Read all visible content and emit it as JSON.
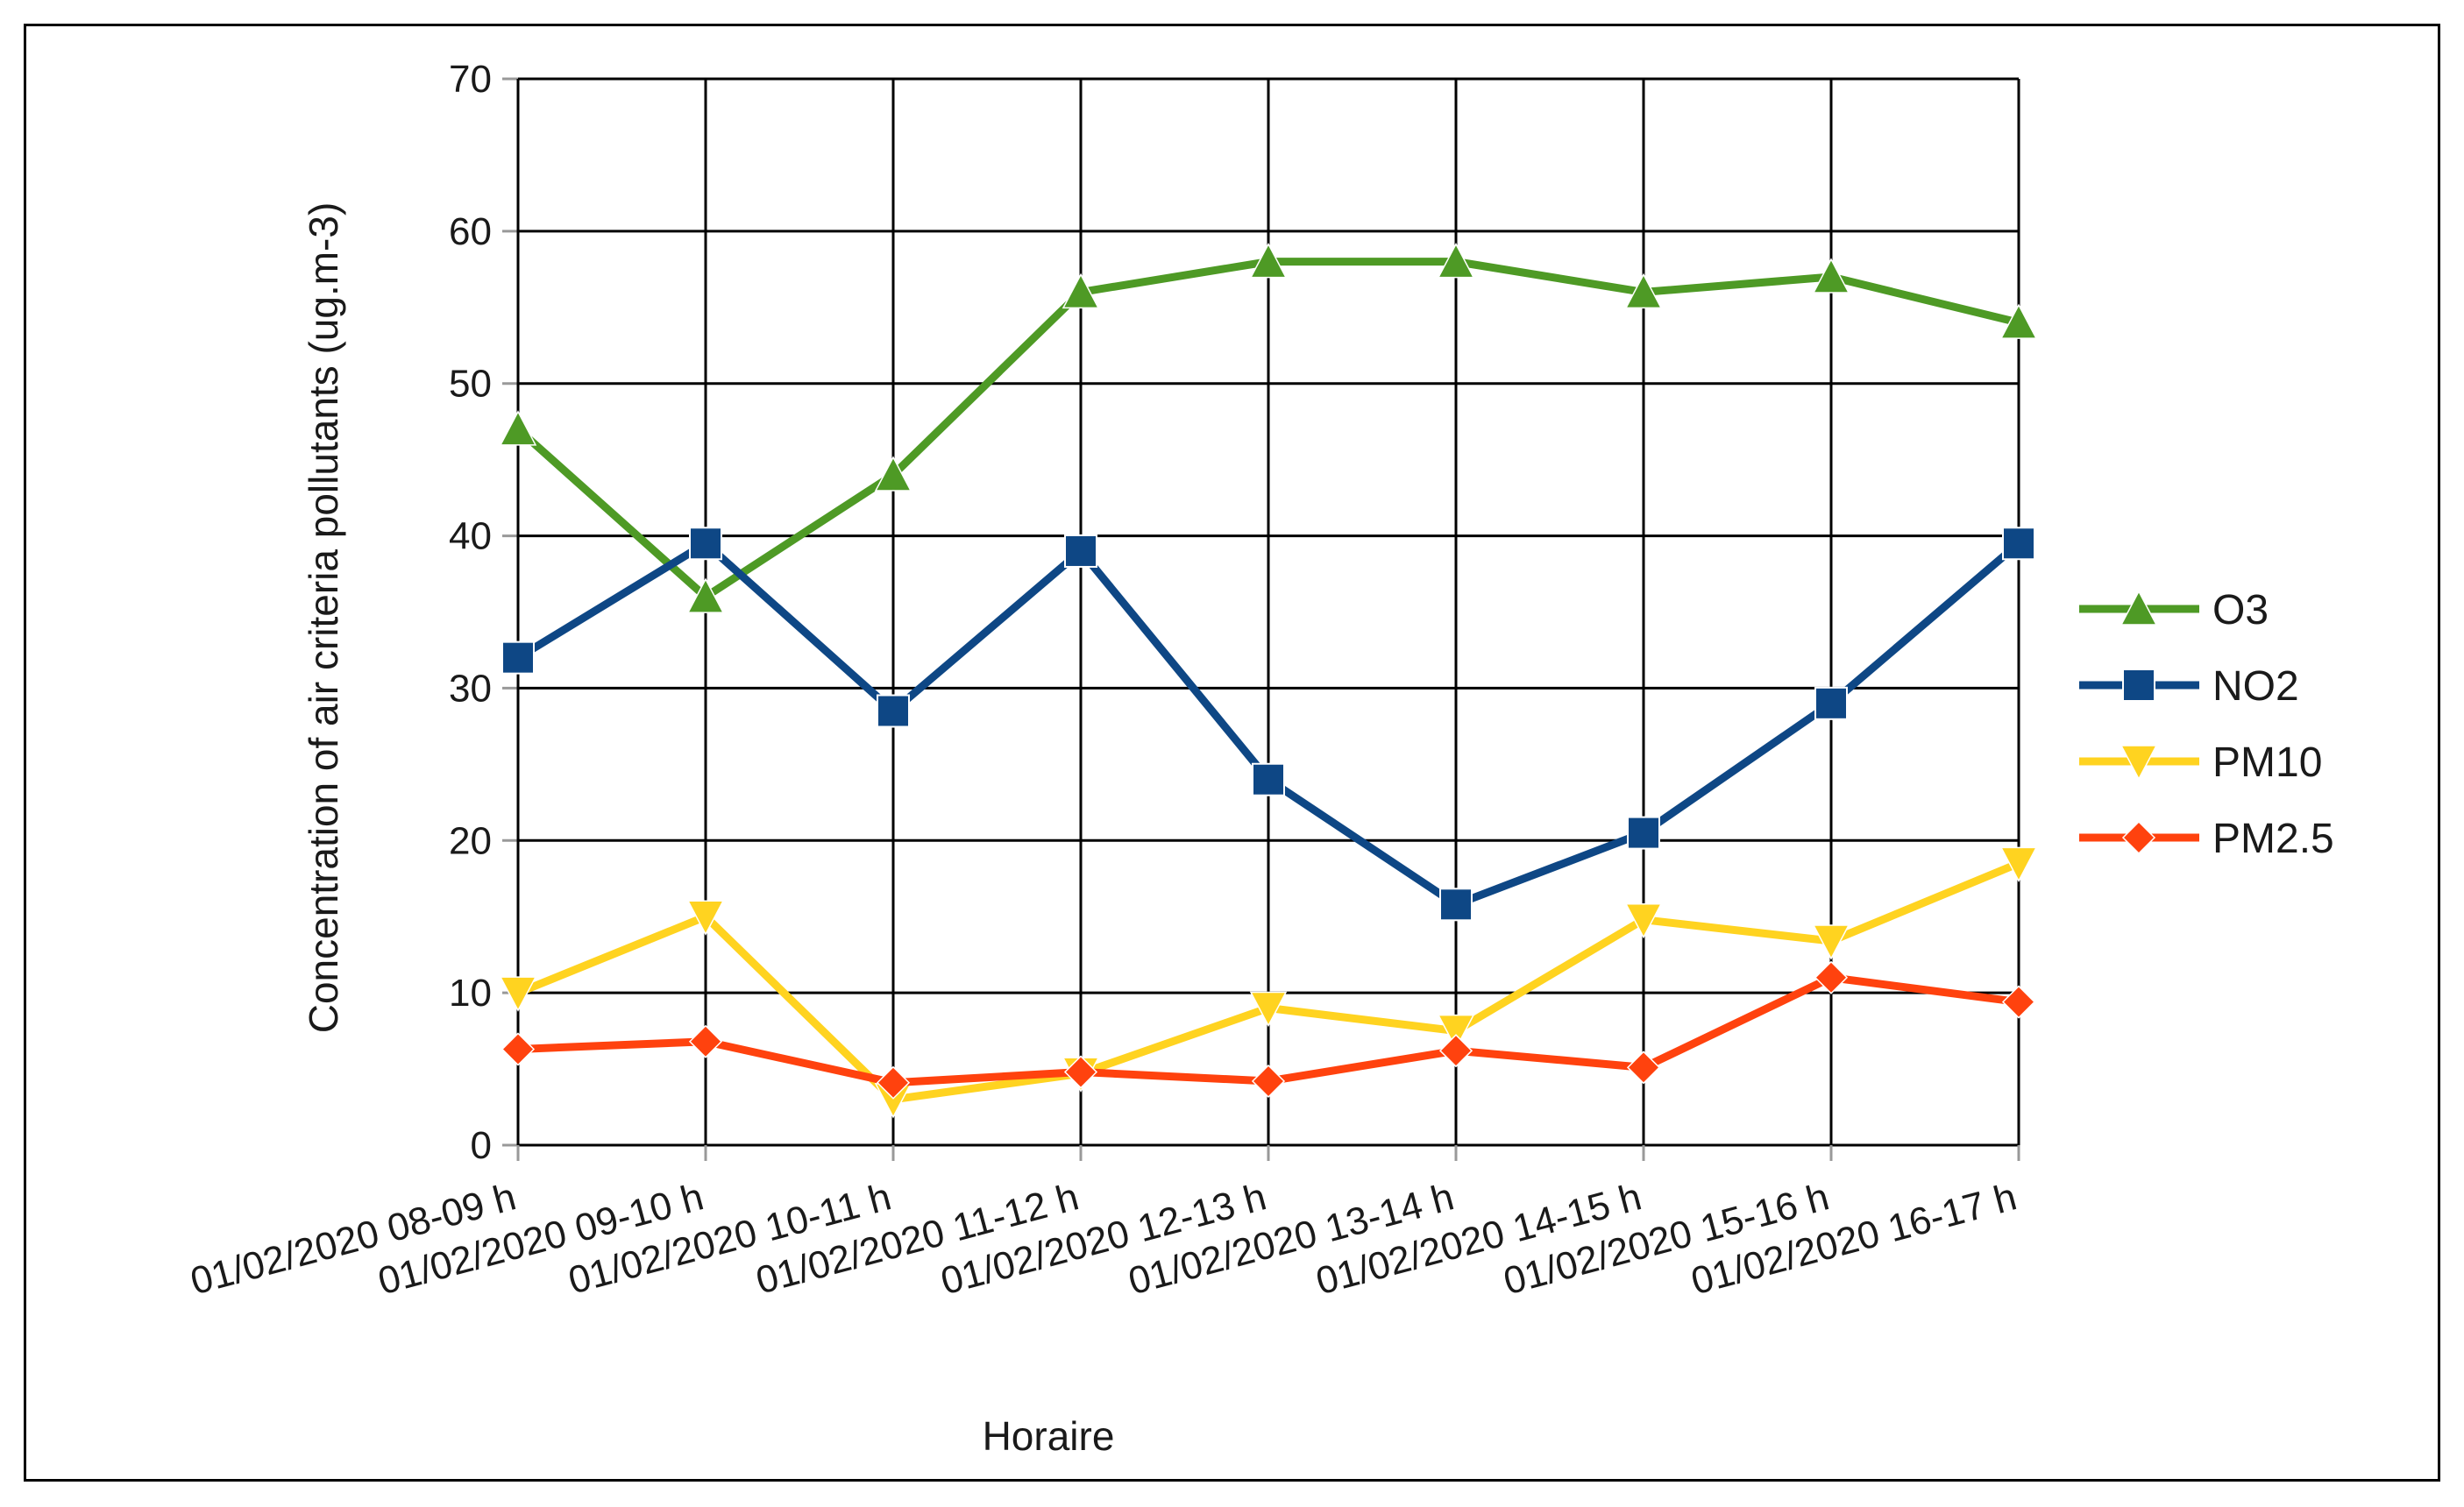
{
  "chart_data": {
    "type": "line",
    "xlabel": "Horaire",
    "ylabel": "Concentration of air criteria pollutants (ug.m-3)",
    "ylim": [
      0,
      70
    ],
    "yticks": [
      0,
      10,
      20,
      30,
      40,
      50,
      60,
      70
    ],
    "categories": [
      "01/02/2020 08-09 h",
      "01/02/2020 09-10 h",
      "01/02/2020 10-11 h",
      "01/02/2020 11-12 h",
      "01/02/2020 12-13 h",
      "01/02/2020 13-14 h",
      "01/02/2020 14-15 h",
      "01/02/2020 15-16 h",
      "01/02/2020 16-17 h"
    ],
    "grid": true,
    "legend_position": "right",
    "series": [
      {
        "name": "O3",
        "color": "#4e9a25",
        "marker": "triangle-up",
        "values": [
          47,
          36,
          44,
          56,
          58,
          58,
          56,
          57,
          54
        ]
      },
      {
        "name": "NO2",
        "color": "#0e4785",
        "marker": "square",
        "values": [
          32,
          39.5,
          28.5,
          39,
          24,
          15.8,
          20.5,
          29,
          39.5
        ]
      },
      {
        "name": "PM10",
        "color": "#ffd320",
        "marker": "triangle-down",
        "values": [
          10,
          15,
          3,
          4.7,
          9,
          7.5,
          14.8,
          13.4,
          18.5
        ]
      },
      {
        "name": "PM2.5",
        "color": "#ff420e",
        "marker": "diamond",
        "values": [
          6.3,
          6.8,
          4.1,
          4.8,
          4.2,
          6.2,
          5.1,
          11,
          9.4
        ]
      }
    ]
  }
}
